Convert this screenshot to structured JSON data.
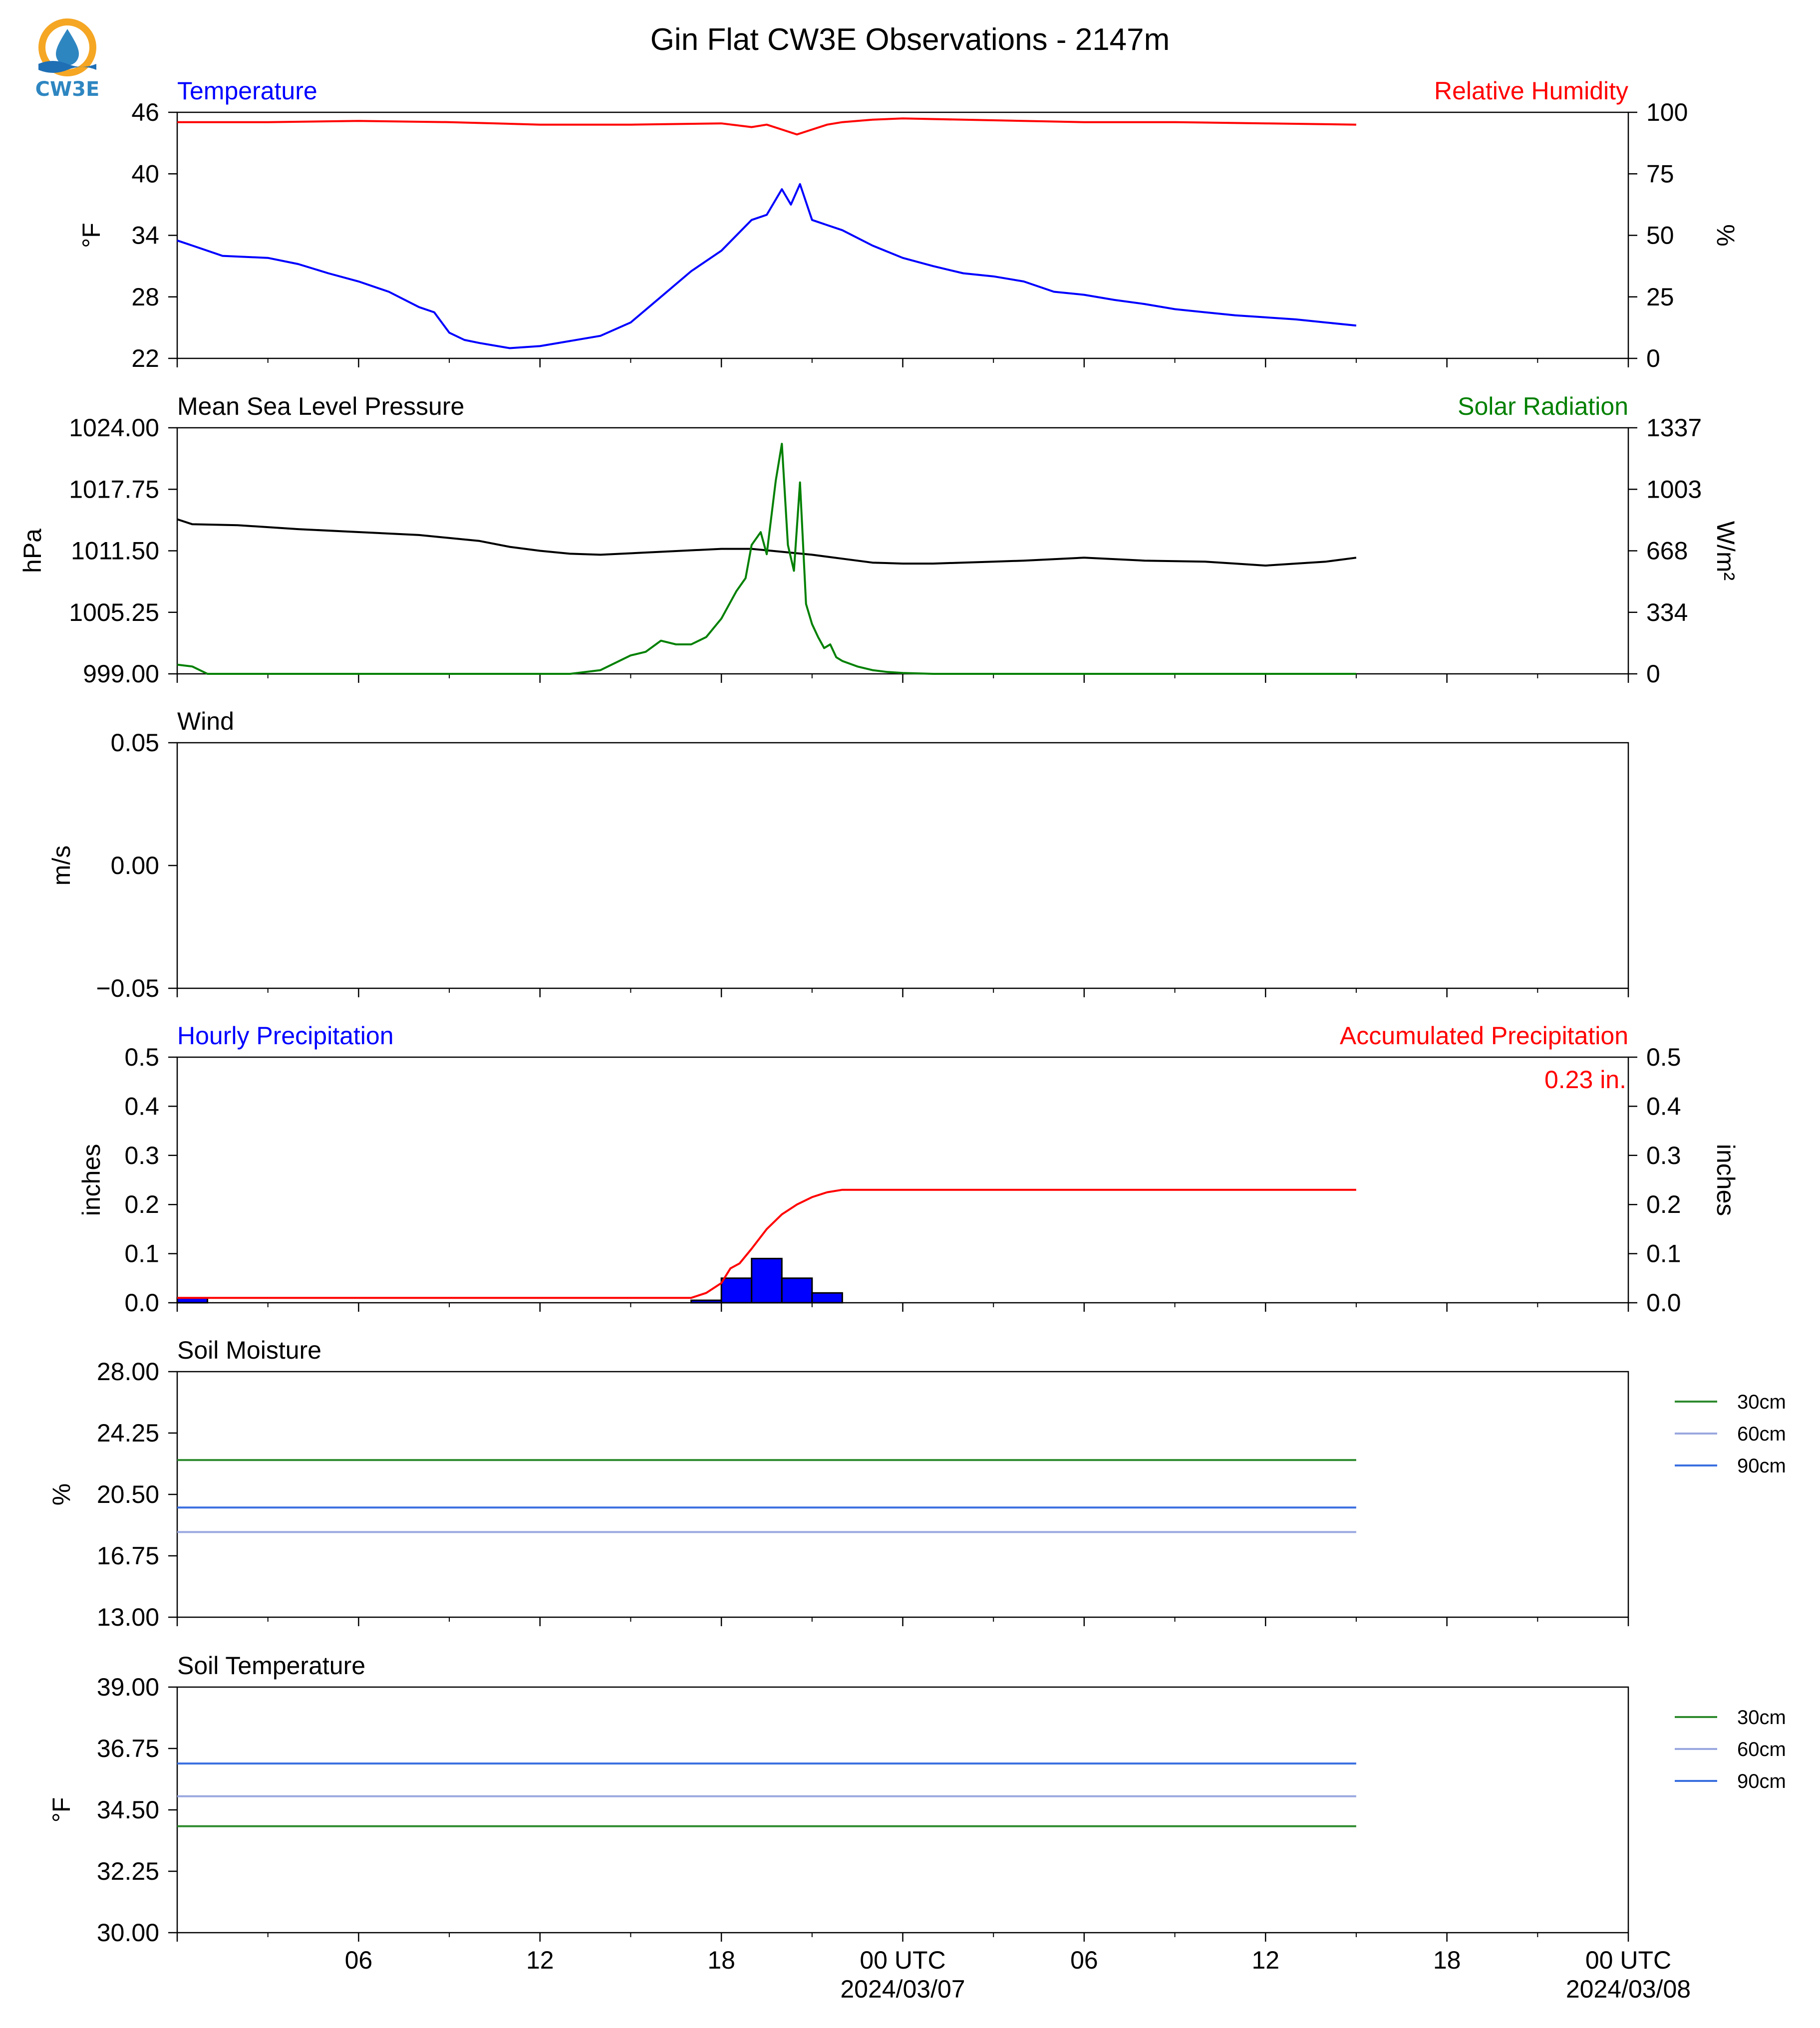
{
  "title": "Gin Flat CW3E Observations - 2147m",
  "logo": {
    "name": "cw3e-logo",
    "text": "CW3E",
    "colors": {
      "sun": "#f5a623",
      "drop": "#2e86c1",
      "wave": "#1f6fb5"
    }
  },
  "colors": {
    "temperature": "#0000ff",
    "humidity": "#ff0000",
    "pressure": "#000000",
    "solar": "#008000",
    "hourly_bar": "#0000ff",
    "accum": "#ff0000",
    "soil_30": "#2e8b2e",
    "soil_60": "#9aa8e0",
    "soil_90": "#3a6fe0"
  },
  "x_axis": {
    "range_hours": [
      0,
      48
    ],
    "tick_hours": [
      0,
      6,
      12,
      18,
      24,
      30,
      36,
      42,
      48
    ],
    "tick_labels": [
      "",
      "06",
      "12",
      "18",
      "00 UTC",
      "06",
      "12",
      "18",
      "00 UTC"
    ],
    "date_labels": [
      {
        "hour": 24,
        "label": "2024/03/07"
      },
      {
        "hour": 48,
        "label": "2024/03/08"
      }
    ]
  },
  "chart_data": [
    {
      "type": "line",
      "title_left": "Temperature",
      "title_right": "Relative Humidity",
      "ylabel_left": "°F",
      "ylabel_right": "%",
      "ylim_left": [
        22,
        46
      ],
      "ylim_right": [
        0,
        100
      ],
      "yticks_left": [
        "22",
        "28",
        "34",
        "40",
        "46"
      ],
      "yticks_right": [
        "0",
        "25",
        "50",
        "75",
        "100"
      ],
      "series": [
        {
          "axis": "left",
          "color": "#0000ff",
          "x": [
            0,
            0.5,
            1.5,
            3,
            4,
            5,
            6,
            7,
            8,
            8.5,
            9,
            9.5,
            10,
            11,
            12,
            13,
            14,
            15,
            16,
            17,
            18,
            19,
            19.5,
            20,
            20.3,
            20.6,
            21,
            21.5,
            22,
            23,
            24,
            25,
            26,
            27,
            28,
            29,
            30,
            31,
            32,
            33,
            34,
            35,
            36,
            37,
            38,
            39
          ],
          "y": [
            33.5,
            33,
            32,
            31.8,
            31.2,
            30.3,
            29.5,
            28.5,
            27,
            26.5,
            24.5,
            23.8,
            23.5,
            23,
            23.2,
            23.7,
            24.2,
            25.5,
            28,
            30.5,
            32.5,
            35.5,
            36,
            38.5,
            37,
            39,
            35.5,
            35,
            34.5,
            33,
            31.8,
            31,
            30.3,
            30,
            29.5,
            28.5,
            28.2,
            27.7,
            27.3,
            26.8,
            26.5,
            26.2,
            26,
            25.8,
            25.5,
            25.2
          ]
        },
        {
          "axis": "right",
          "color": "#ff0000",
          "x": [
            0,
            3,
            6,
            9,
            12,
            15,
            18,
            19,
            19.5,
            20,
            20.5,
            21,
            21.5,
            22,
            23,
            24,
            26,
            28,
            30,
            33,
            36,
            39
          ],
          "y": [
            96,
            96,
            96.5,
            96,
            95,
            95,
            95.5,
            94,
            95,
            93,
            91,
            93,
            95,
            96,
            97,
            97.5,
            97,
            96.5,
            96,
            96,
            95.5,
            95
          ]
        }
      ]
    },
    {
      "type": "line",
      "title_left": "Mean Sea Level Pressure",
      "title_right": "Solar Radiation",
      "ylabel_left": "hPa",
      "ylabel_right": "W/m²",
      "ylim_left": [
        999,
        1024
      ],
      "ylim_right": [
        0,
        1337
      ],
      "yticks_left": [
        "999.00",
        "1005.25",
        "1011.50",
        "1017.75",
        "1024.00"
      ],
      "yticks_right": [
        "0",
        "334",
        "668",
        "1003",
        "1337"
      ],
      "series": [
        {
          "axis": "left",
          "color": "#000000",
          "x": [
            0,
            0.5,
            2,
            4,
            6,
            8,
            10,
            11,
            12,
            13,
            14,
            16,
            18,
            19,
            20,
            21,
            22,
            23,
            24,
            25,
            27,
            28,
            30,
            32,
            34,
            35,
            35.5,
            36,
            37,
            38,
            39
          ],
          "y": [
            1014.7,
            1014.2,
            1014.1,
            1013.7,
            1013.4,
            1013.1,
            1012.5,
            1011.9,
            1011.5,
            1011.2,
            1011.1,
            1011.4,
            1011.7,
            1011.7,
            1011.4,
            1011.1,
            1010.7,
            1010.3,
            1010.2,
            1010.2,
            1010.4,
            1010.5,
            1010.8,
            1010.5,
            1010.4,
            1010.2,
            1010.1,
            1010.0,
            1010.2,
            1010.4,
            1010.8
          ]
        },
        {
          "axis": "right",
          "color": "#008000",
          "x": [
            0,
            0.5,
            1,
            13,
            14,
            15,
            15.5,
            16,
            16.5,
            17,
            17.5,
            18,
            18.5,
            18.8,
            19,
            19.3,
            19.5,
            19.8,
            20,
            20.2,
            20.4,
            20.6,
            20.8,
            21,
            21.2,
            21.4,
            21.6,
            21.8,
            22,
            22.5,
            23,
            23.5,
            24,
            25,
            26,
            30,
            39
          ],
          "y": [
            50,
            40,
            0,
            0,
            20,
            100,
            120,
            180,
            160,
            160,
            200,
            300,
            450,
            520,
            700,
            770,
            650,
            1050,
            1250,
            700,
            560,
            1040,
            380,
            270,
            200,
            140,
            160,
            90,
            70,
            40,
            20,
            10,
            5,
            0,
            0,
            0,
            0
          ]
        }
      ]
    },
    {
      "type": "line",
      "title_left": "Wind",
      "ylabel_left": "m/s",
      "ylim_left": [
        -0.055,
        0.055
      ],
      "yticks_left": [
        "−0.05",
        "0.00",
        "0.05"
      ],
      "series": []
    },
    {
      "type": "bar",
      "title_left": "Hourly Precipitation",
      "title_right": "Accumulated Precipitation",
      "annotation": "0.23 in.",
      "ylabel_left": "inches",
      "ylabel_right": "inches",
      "ylim_left": [
        0,
        0.5
      ],
      "ylim_right": [
        0,
        0.5
      ],
      "yticks_left": [
        "0.0",
        "0.1",
        "0.2",
        "0.3",
        "0.4",
        "0.5"
      ],
      "yticks_right": [
        "0.0",
        "0.1",
        "0.2",
        "0.3",
        "0.4",
        "0.5"
      ],
      "bars": {
        "x": [
          0,
          17,
          18,
          19,
          20,
          21
        ],
        "values": [
          0.01,
          0.005,
          0.05,
          0.09,
          0.05,
          0.02
        ]
      },
      "series": [
        {
          "axis": "right",
          "color": "#ff0000",
          "x": [
            0,
            17,
            17.5,
            18,
            18.3,
            18.6,
            19,
            19.5,
            20,
            20.5,
            21,
            21.5,
            22,
            24,
            39
          ],
          "y": [
            0.01,
            0.01,
            0.02,
            0.04,
            0.07,
            0.08,
            0.11,
            0.15,
            0.18,
            0.2,
            0.215,
            0.225,
            0.23,
            0.23,
            0.23
          ]
        }
      ]
    },
    {
      "type": "line",
      "title_left": "Soil Moisture",
      "ylabel_left": "%",
      "ylim_left": [
        13,
        28
      ],
      "yticks_left": [
        "13.00",
        "16.75",
        "20.50",
        "24.25",
        "28.00"
      ],
      "legend": [
        "30cm",
        "60cm",
        "90cm"
      ],
      "series": [
        {
          "name": "30cm",
          "color": "#2e8b2e",
          "x": [
            0,
            39
          ],
          "y": [
            22.6,
            22.6
          ]
        },
        {
          "name": "60cm",
          "color": "#9aa8e0",
          "x": [
            0,
            39
          ],
          "y": [
            18.2,
            18.2
          ]
        },
        {
          "name": "90cm",
          "color": "#3a6fe0",
          "x": [
            0,
            39
          ],
          "y": [
            19.7,
            19.7
          ]
        }
      ]
    },
    {
      "type": "line",
      "title_left": "Soil Temperature",
      "ylabel_left": "°F",
      "ylim_left": [
        30,
        39
      ],
      "yticks_left": [
        "30.00",
        "32.25",
        "34.50",
        "36.75",
        "39.00"
      ],
      "legend": [
        "30cm",
        "60cm",
        "90cm"
      ],
      "series": [
        {
          "name": "30cm",
          "color": "#2e8b2e",
          "x": [
            0,
            39
          ],
          "y": [
            33.9,
            33.9
          ]
        },
        {
          "name": "60cm",
          "color": "#9aa8e0",
          "x": [
            0,
            39
          ],
          "y": [
            35.0,
            35.0
          ]
        },
        {
          "name": "90cm",
          "color": "#3a6fe0",
          "x": [
            0,
            39
          ],
          "y": [
            36.2,
            36.2
          ]
        }
      ]
    }
  ]
}
